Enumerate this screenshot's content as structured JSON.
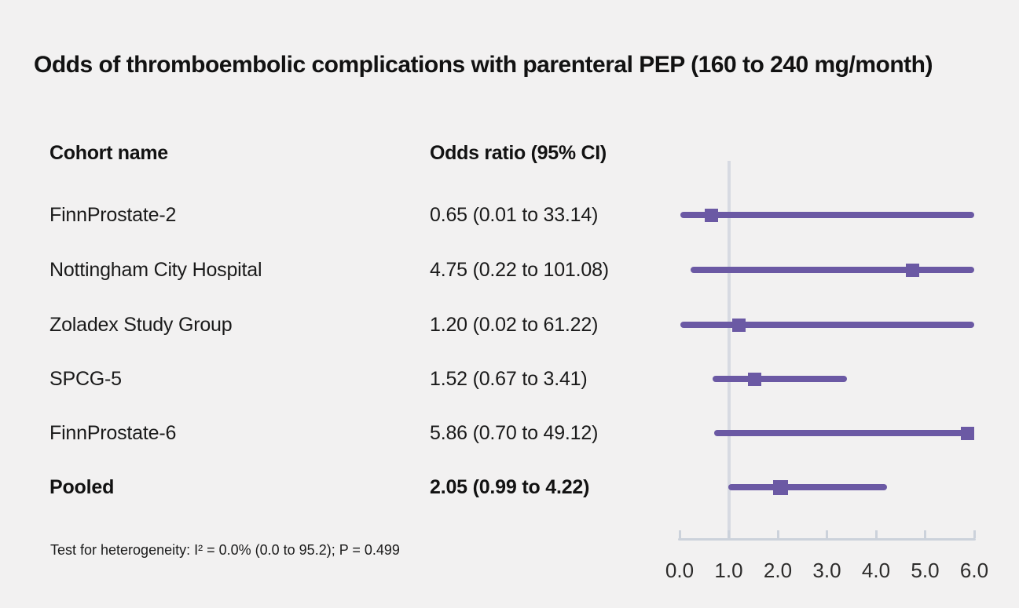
{
  "title": "Odds of thromboembolic complications with parenteral PEP (160 to 240 mg/month)",
  "columns": {
    "cohort": "Cohort name",
    "odds_ratio": "Odds ratio (95% CI)"
  },
  "footnote": "Test for heterogeneity: I² = 0.0% (0.0 to 95.2); P = 0.499",
  "colors": {
    "marker": "#6b59a4",
    "reference_line": "#d7dae2",
    "axis": "#ccd2db",
    "background": "#f2f1f1",
    "text": "#1a1a1a"
  },
  "chart_data": {
    "type": "forest",
    "title": "Odds of thromboembolic complications with parenteral PEP (160 to 240 mg/month)",
    "xlabel": "Odds ratio",
    "x_axis": {
      "range": [
        0,
        6
      ],
      "tick_values": [
        0,
        1,
        2,
        3,
        4,
        5,
        6
      ],
      "tick_labels": [
        "0.0",
        "1.0",
        "2.0",
        "3.0",
        "4.0",
        "5.0",
        "6.0"
      ],
      "reference_value": 1.0
    },
    "rows": [
      {
        "name": "FinnProstate-2",
        "label": "0.65 (0.01 to 33.14)",
        "or": 0.65,
        "lo": 0.01,
        "hi": 33.14,
        "pooled": false
      },
      {
        "name": "Nottingham City Hospital",
        "label": "4.75 (0.22 to 101.08)",
        "or": 4.75,
        "lo": 0.22,
        "hi": 101.08,
        "pooled": false
      },
      {
        "name": "Zoladex Study Group",
        "label": "1.20 (0.02 to 61.22)",
        "or": 1.2,
        "lo": 0.02,
        "hi": 61.22,
        "pooled": false
      },
      {
        "name": "SPCG-5",
        "label": "1.52 (0.67 to 3.41)",
        "or": 1.52,
        "lo": 0.67,
        "hi": 3.41,
        "pooled": false
      },
      {
        "name": "FinnProstate-6",
        "label": "5.86 (0.70 to 49.12)",
        "or": 5.86,
        "lo": 0.7,
        "hi": 49.12,
        "pooled": false
      },
      {
        "name": "Pooled",
        "label": "2.05 (0.99 to 4.22)",
        "or": 2.05,
        "lo": 0.99,
        "hi": 4.22,
        "pooled": true
      }
    ]
  }
}
